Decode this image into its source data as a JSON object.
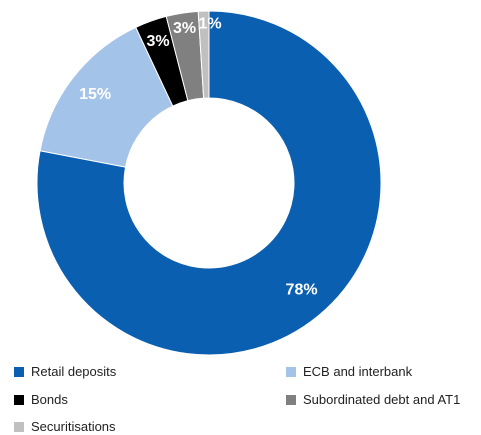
{
  "chart_data": {
    "type": "pie",
    "variant": "donut",
    "categories": [
      "Retail deposits",
      "ECB and interbank",
      "Bonds",
      "Subordinated debt and AT1",
      "Securitisations"
    ],
    "values": [
      78,
      15,
      3,
      3,
      1
    ],
    "labels": [
      "78%",
      "15%",
      "3%",
      "3%",
      "1%"
    ],
    "colors": [
      "#0b5fb0",
      "#a4c3e8",
      "#000000",
      "#808080",
      "#c0c0c0"
    ],
    "legend_position": "bottom"
  }
}
